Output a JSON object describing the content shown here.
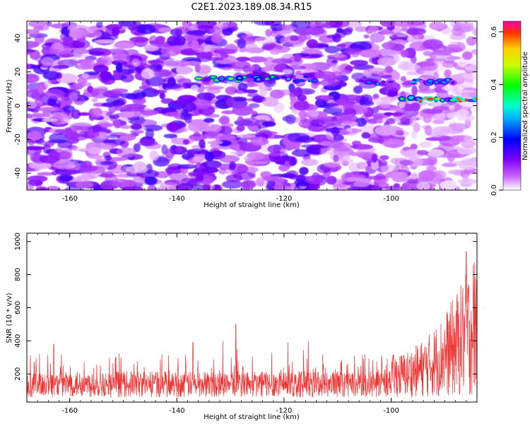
{
  "chart_data": [
    {
      "type": "heatmap",
      "title": "C2E1.2023.189.08.34.R15",
      "xlabel": "Height of straight line (km)",
      "ylabel": "Frequency (Hz)",
      "xlim": [
        -168,
        -84
      ],
      "ylim": [
        -50,
        50
      ],
      "xticks": [
        -160,
        -140,
        -120,
        -100
      ],
      "yticks": [
        -40,
        -20,
        0,
        20,
        40
      ],
      "colorbar": {
        "label": "Normalized spectral amplitude",
        "range": [
          0,
          0.64
        ],
        "ticks": [
          "0.0",
          "0.2",
          "0.4",
          "0.6"
        ],
        "colormap": "rainbow"
      },
      "features": [
        {
          "description": "strong spectral line",
          "x_range": [
            -136,
            -114
          ],
          "frequency": 16,
          "peak_amplitude": 0.45
        },
        {
          "description": "spectral line",
          "x_range": [
            -106,
            -100
          ],
          "frequency": 14,
          "peak_amplitude": 0.3
        },
        {
          "description": "spectral line",
          "x_range": [
            -96,
            -88
          ],
          "frequency": 14,
          "peak_amplitude": 0.3
        },
        {
          "description": "strong feature near end",
          "x_range": [
            -98,
            -84
          ],
          "frequency": 4,
          "peak_amplitude": 0.64
        }
      ]
    },
    {
      "type": "line",
      "xlabel": "Height of straight line (km)",
      "ylabel": "SNR (10 * v/v)",
      "xlim": [
        -168,
        -84
      ],
      "ylim": [
        30,
        1050
      ],
      "xticks": [
        -160,
        -140,
        -120,
        -100
      ],
      "yticks": [
        200,
        400,
        600,
        800,
        1000
      ],
      "series": [
        {
          "name": "SNR",
          "color": "#ee3333",
          "x_range": [
            -168,
            -84
          ],
          "baseline": 130,
          "noise_low": 60,
          "noise_high": 320,
          "rise_start": -100,
          "end_value": 1040,
          "notable_spikes": [
            {
              "x": -129,
              "y": 500
            },
            {
              "x": -137,
              "y": 390
            },
            {
              "x": -163,
              "y": 380
            },
            {
              "x": -86,
              "y": 940
            }
          ]
        }
      ]
    }
  ]
}
